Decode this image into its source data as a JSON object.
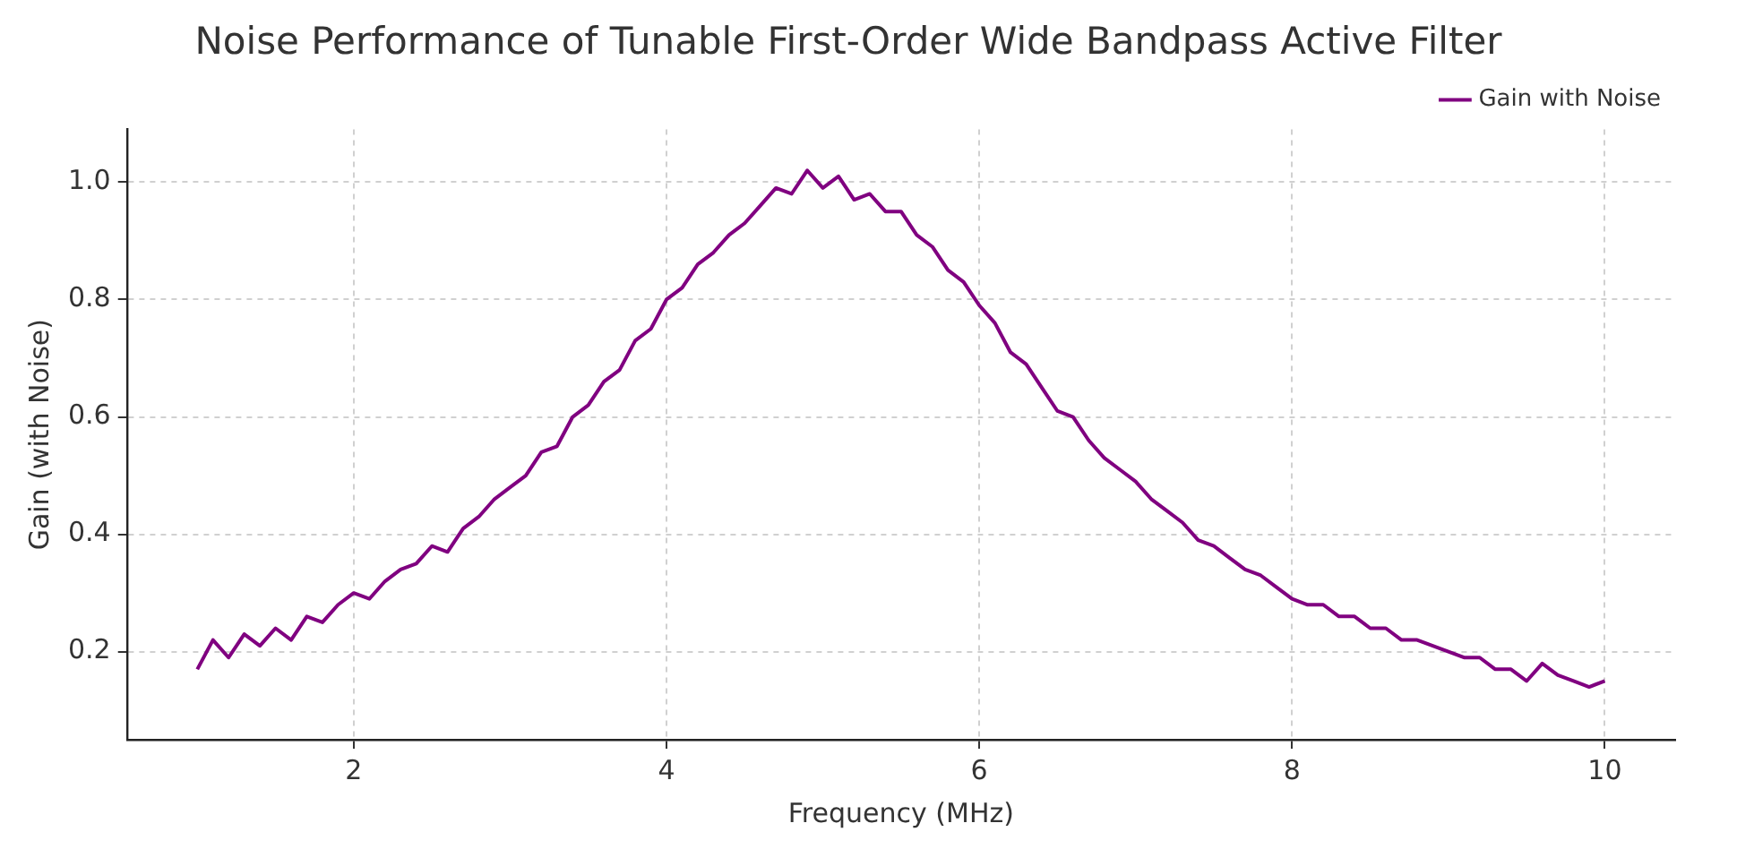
{
  "chart_data": {
    "type": "line",
    "title": "Noise Performance of Tunable First-Order Wide Bandpass Active Filter",
    "xlabel": "Frequency (MHz)",
    "ylabel": "Gain (with Noise)",
    "x": [
      1.0,
      1.1,
      1.2,
      1.3,
      1.4,
      1.5,
      1.6,
      1.7,
      1.8,
      1.9,
      2.0,
      2.1,
      2.2,
      2.3,
      2.4,
      2.5,
      2.6,
      2.7,
      2.8,
      2.9,
      3.0,
      3.1,
      3.2,
      3.3,
      3.4,
      3.5,
      3.6,
      3.7,
      3.8,
      3.9,
      4.0,
      4.1,
      4.2,
      4.3,
      4.4,
      4.5,
      4.6,
      4.7,
      4.8,
      4.9,
      5.0,
      5.1,
      5.2,
      5.3,
      5.4,
      5.5,
      5.6,
      5.7,
      5.8,
      5.9,
      6.0,
      6.1,
      6.2,
      6.3,
      6.4,
      6.5,
      6.6,
      6.7,
      6.8,
      6.9,
      7.0,
      7.1,
      7.2,
      7.3,
      7.4,
      7.5,
      7.6,
      7.7,
      7.8,
      7.9,
      8.0,
      8.1,
      8.2,
      8.3,
      8.4,
      8.5,
      8.6,
      8.7,
      8.8,
      8.9,
      9.0,
      9.1,
      9.2,
      9.3,
      9.4,
      9.5,
      9.6,
      9.7,
      9.8,
      9.9,
      10.0
    ],
    "series": [
      {
        "name": "Gain with Noise",
        "color": "#800080",
        "values": [
          0.17,
          0.22,
          0.19,
          0.23,
          0.21,
          0.24,
          0.22,
          0.26,
          0.25,
          0.28,
          0.3,
          0.29,
          0.32,
          0.34,
          0.35,
          0.38,
          0.37,
          0.41,
          0.43,
          0.46,
          0.48,
          0.5,
          0.54,
          0.55,
          0.6,
          0.62,
          0.66,
          0.68,
          0.73,
          0.75,
          0.8,
          0.82,
          0.86,
          0.88,
          0.91,
          0.93,
          0.96,
          0.99,
          0.98,
          1.02,
          0.99,
          1.01,
          0.97,
          0.98,
          0.95,
          0.95,
          0.91,
          0.89,
          0.85,
          0.83,
          0.79,
          0.76,
          0.71,
          0.69,
          0.65,
          0.61,
          0.6,
          0.56,
          0.53,
          0.51,
          0.49,
          0.46,
          0.44,
          0.42,
          0.39,
          0.38,
          0.36,
          0.34,
          0.33,
          0.31,
          0.29,
          0.28,
          0.28,
          0.26,
          0.26,
          0.24,
          0.24,
          0.22,
          0.22,
          0.21,
          0.2,
          0.19,
          0.19,
          0.17,
          0.17,
          0.15,
          0.18,
          0.16,
          0.15,
          0.14,
          0.15
        ]
      }
    ],
    "xlim": [
      0.55,
      10.45
    ],
    "xticks": [
      2,
      4,
      6,
      8,
      10
    ],
    "ylim": [
      0.05,
      1.09
    ],
    "yticks": [
      {
        "value": 0.2,
        "label": "0.2"
      },
      {
        "value": 0.4,
        "label": "0.4"
      },
      {
        "value": 0.6,
        "label": "0.6"
      },
      {
        "value": 0.8,
        "label": "0.8"
      },
      {
        "value": 1.0,
        "label": "1.0"
      }
    ],
    "grid": true,
    "legend": "top right",
    "marker": "none",
    "line_style": "solid"
  }
}
